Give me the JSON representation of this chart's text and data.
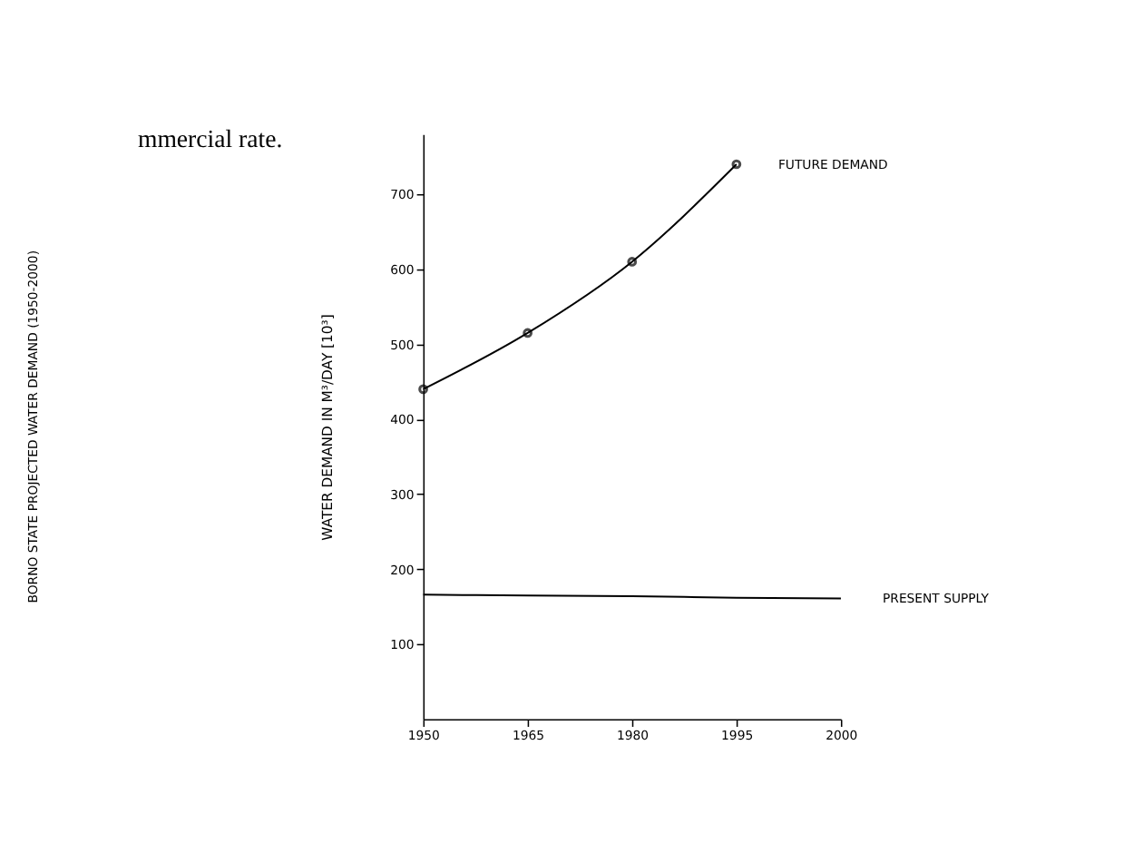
{
  "chart_data": {
    "type": "line",
    "title": "BORNO STATE PROJECTED WATER DEMAND (1950-2000)",
    "ylabel": "WATER DEMAND IN M³/DAY [10³]",
    "annotations": [
      "mmercial rate."
    ],
    "categories": [
      "1950",
      "1965",
      "1980",
      "1995",
      "2000"
    ],
    "series": [
      {
        "name": "FUTURE DEMAND",
        "color": "#000000",
        "values": [
          440,
          515,
          610,
          740,
          null
        ],
        "marker": "circle"
      },
      {
        "name": "PRESENT SUPPLY",
        "color": "#000000",
        "values": [
          166,
          165,
          164,
          162,
          161
        ],
        "marker": "none"
      }
    ],
    "ylim": [
      0,
      780
    ],
    "yticks": [
      100,
      200,
      300,
      400,
      500,
      600,
      700
    ],
    "grid": false
  }
}
